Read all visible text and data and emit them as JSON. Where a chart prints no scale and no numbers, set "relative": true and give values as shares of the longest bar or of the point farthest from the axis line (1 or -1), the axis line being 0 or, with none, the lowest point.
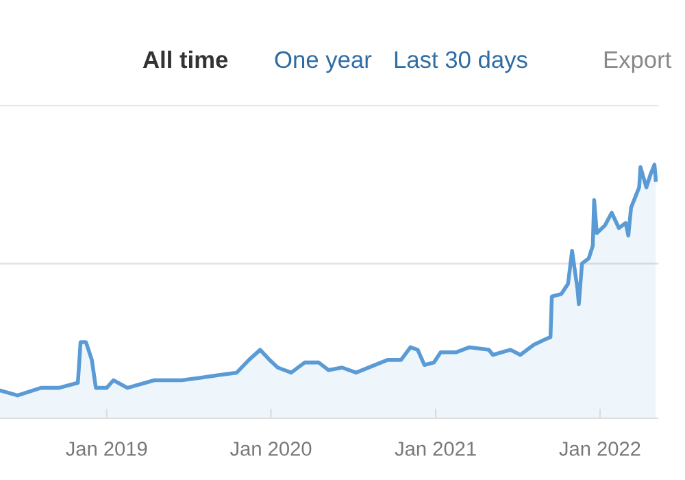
{
  "chart_data": {
    "type": "area",
    "relative": true,
    "annotations": [
      "All time",
      "One year",
      "Last 30 days",
      "Export"
    ],
    "xlim": [
      "2018-05-09",
      "2022-05-09"
    ],
    "xticks": [
      {
        "value": "2019-01-01",
        "label": "Jan 2019"
      },
      {
        "value": "2020-01-01",
        "label": "Jan 2020"
      },
      {
        "value": "2021-01-01",
        "label": "Jan 2021"
      },
      {
        "value": "2022-01-01",
        "label": "Jan 2022"
      }
    ],
    "grid": false,
    "legend": false,
    "ref_lines": [
      {
        "axis": "y",
        "value": 0.61,
        "color": "#e3e3e3"
      }
    ],
    "series": [
      {
        "color": "#5b9bd5",
        "x": [
          "2018-05-09",
          "2018-06-17",
          "2018-08-08",
          "2018-09-17",
          "2018-10-29",
          "2018-11-04",
          "2018-11-16",
          "2018-11-29",
          "2018-12-08",
          "2019-01-01",
          "2019-01-16",
          "2019-02-16",
          "2019-04-17",
          "2019-06-17",
          "2019-07-30",
          "2019-09-07",
          "2019-10-17",
          "2019-11-13",
          "2019-12-08",
          "2019-12-29",
          "2020-01-16",
          "2020-02-15",
          "2020-03-16",
          "2020-04-16",
          "2020-05-08",
          "2020-06-07",
          "2020-07-08",
          "2020-09-16",
          "2020-10-16",
          "2020-11-06",
          "2020-11-22",
          "2020-12-07",
          "2020-12-28",
          "2021-01-12",
          "2021-02-15",
          "2021-03-17",
          "2021-04-29",
          "2021-05-08",
          "2021-06-16",
          "2021-07-08",
          "2021-08-07",
          "2021-08-31",
          "2021-09-13",
          "2021-09-16",
          "2021-10-07",
          "2021-10-22",
          "2021-10-31",
          "2021-11-12",
          "2021-11-15",
          "2021-11-22",
          "2021-12-07",
          "2021-12-16",
          "2021-12-19",
          "2021-12-25",
          "2022-01-12",
          "2022-01-27",
          "2022-02-12",
          "2022-02-27",
          "2022-03-05",
          "2022-03-11",
          "2022-03-29",
          "2022-04-01",
          "2022-04-14",
          "2022-04-23",
          "2022-05-02",
          "2022-05-05"
        ],
        "values": [
          0.11,
          0.09,
          0.12,
          0.12,
          0.14,
          0.3,
          0.3,
          0.23,
          0.12,
          0.12,
          0.15,
          0.12,
          0.15,
          0.15,
          0.16,
          0.17,
          0.18,
          0.23,
          0.27,
          0.23,
          0.2,
          0.18,
          0.22,
          0.22,
          0.19,
          0.2,
          0.18,
          0.23,
          0.23,
          0.28,
          0.27,
          0.21,
          0.22,
          0.26,
          0.26,
          0.28,
          0.27,
          0.25,
          0.27,
          0.25,
          0.29,
          0.31,
          0.32,
          0.48,
          0.49,
          0.53,
          0.66,
          0.51,
          0.45,
          0.61,
          0.63,
          0.68,
          0.86,
          0.73,
          0.76,
          0.81,
          0.75,
          0.77,
          0.72,
          0.83,
          0.91,
          0.99,
          0.91,
          0.96,
          1.0,
          0.94
        ]
      }
    ]
  }
}
